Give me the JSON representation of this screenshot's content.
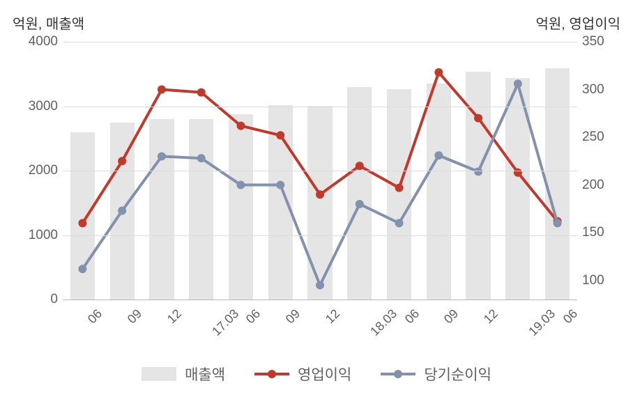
{
  "chart": {
    "type": "bar+line-dual-axis",
    "background_color": "#ffffff",
    "grid_color": "#dcdcdc",
    "baseline_color": "#b8b8b8",
    "text_color": "#606060",
    "title_color": "#333333",
    "y_left": {
      "title": "억원, 매출액",
      "min": 0,
      "max": 4000,
      "ticks": [
        0,
        1000,
        2000,
        3000,
        4000
      ],
      "fontsize": 20,
      "label_fontsize": 19
    },
    "y_right": {
      "title": "억원, 영업이익",
      "min": 80,
      "max": 350,
      "ticks": [
        100,
        150,
        200,
        250,
        300,
        350
      ],
      "fontsize": 20,
      "label_fontsize": 19
    },
    "categories": [
      "06",
      "09",
      "12",
      "17.03",
      "06",
      "09",
      "12",
      "18.03",
      "06",
      "09",
      "12",
      "19.03",
      "06"
    ],
    "x_label_fontsize": 18,
    "x_label_rotation": -45,
    "bars": {
      "name": "매출액",
      "color": "#e5e5e5",
      "width_ratio": 0.62,
      "values": [
        2600,
        2750,
        2800,
        2800,
        2880,
        3020,
        3010,
        3300,
        3260,
        3350,
        3540,
        3440,
        3590
      ]
    },
    "lines": [
      {
        "name": "영업이익",
        "color": "#c0392b",
        "line_width": 4,
        "marker_radius": 6,
        "values": [
          160,
          225,
          300,
          297,
          262,
          252,
          190,
          220,
          197,
          318,
          270,
          213,
          162
        ]
      },
      {
        "name": "당기순이익",
        "color": "#8191ae",
        "line_width": 4,
        "marker_radius": 6,
        "values": [
          112,
          173,
          230,
          228,
          200,
          200,
          95,
          180,
          160,
          231,
          214,
          306,
          160
        ]
      }
    ],
    "legend": {
      "fontsize": 21,
      "items": [
        "매출액",
        "영업이익",
        "당기순이익"
      ]
    }
  }
}
